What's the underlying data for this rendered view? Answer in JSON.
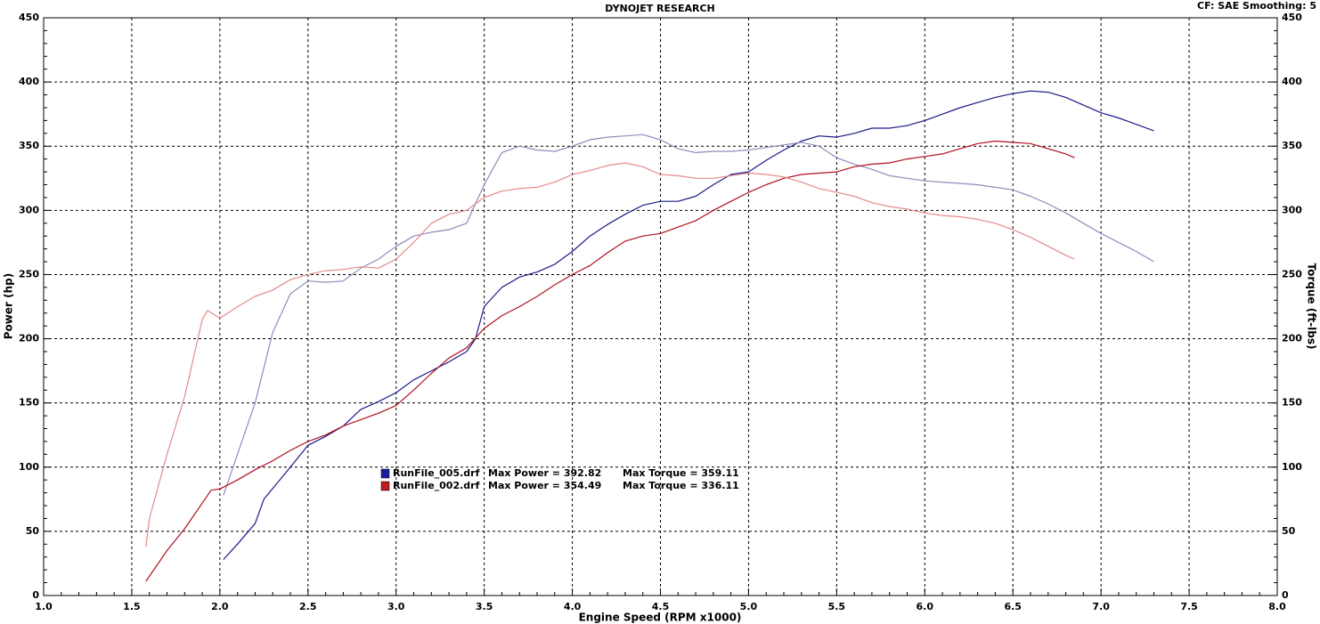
{
  "chart_data": {
    "type": "line",
    "title": "DYNOJET RESEARCH",
    "subtitle": "CF: SAE  Smoothing: 5",
    "xlabel": "Engine Speed (RPM x1000)",
    "ylabel": "Power (hp)",
    "y2label": "Torque (ft-lbs)",
    "xlim": [
      1,
      8
    ],
    "xticks": [
      {
        "value": 1,
        "label": "1.0"
      },
      {
        "value": 1.5,
        "label": "1.5"
      },
      {
        "value": 2,
        "label": "2.0"
      },
      {
        "value": 2.5,
        "label": "2.5"
      },
      {
        "value": 3,
        "label": "3.0"
      },
      {
        "value": 3.5,
        "label": "3.5"
      },
      {
        "value": 4,
        "label": "4.0"
      },
      {
        "value": 4.5,
        "label": "4.5"
      },
      {
        "value": 5,
        "label": "5.0"
      },
      {
        "value": 5.5,
        "label": "5.5"
      },
      {
        "value": 6,
        "label": "6.0"
      },
      {
        "value": 6.5,
        "label": "6.5"
      },
      {
        "value": 7,
        "label": "7.0"
      },
      {
        "value": 7.5,
        "label": "7.5"
      },
      {
        "value": 8,
        "label": "8.0"
      }
    ],
    "ylim": [
      0,
      450
    ],
    "yticks": [
      0,
      50,
      100,
      150,
      200,
      250,
      300,
      350,
      400,
      450
    ],
    "y2lim": [
      0,
      450
    ],
    "y2ticks": [
      0,
      50,
      100,
      150,
      200,
      250,
      300,
      350,
      400,
      450
    ],
    "grid": true,
    "minor_ticks_per_major": 5,
    "legend": [
      {
        "name": "RunFile_005.drf",
        "max_power": "Max Power = 392.82",
        "max_torque": "Max Torque = 359.11",
        "color": "#1c1ca0"
      },
      {
        "name": "RunFile_002.drf",
        "max_power": "Max Power = 354.49",
        "max_torque": "Max Torque = 336.11",
        "color": "#c01a1a"
      }
    ],
    "series": [
      {
        "color": "#1a1a8a",
        "x": [
          2.02,
          2.1,
          2.2,
          2.25,
          2.4,
          2.5,
          2.6,
          2.7,
          2.8,
          2.9,
          3.0,
          3.1,
          3.2,
          3.3,
          3.4,
          3.45,
          3.5,
          3.6,
          3.7,
          3.8,
          3.9,
          4.0,
          4.1,
          4.2,
          4.3,
          4.4,
          4.5,
          4.6,
          4.7,
          4.8,
          4.9,
          5.0,
          5.1,
          5.2,
          5.3,
          5.4,
          5.5,
          5.6,
          5.7,
          5.8,
          5.9,
          6.0,
          6.1,
          6.2,
          6.3,
          6.4,
          6.5,
          6.6,
          6.7,
          6.8,
          6.9,
          7.0,
          7.1,
          7.2,
          7.3
        ],
        "values": [
          28,
          40,
          56,
          75,
          100,
          117,
          124,
          132,
          145,
          151,
          158,
          168,
          175,
          182,
          190,
          200,
          225,
          240,
          248,
          252,
          258,
          268,
          280,
          289,
          297,
          304,
          307,
          307,
          311,
          320,
          328,
          330,
          339,
          347,
          354,
          358,
          357,
          360,
          364,
          364,
          366,
          370,
          375,
          380,
          384,
          388,
          391,
          393,
          392,
          388,
          382,
          376,
          372,
          367,
          362
        ]
      },
      {
        "color": "#8c8cbc",
        "axis": "y2",
        "x": [
          2.02,
          2.1,
          2.2,
          2.3,
          2.4,
          2.5,
          2.6,
          2.7,
          2.8,
          2.9,
          3.0,
          3.1,
          3.2,
          3.3,
          3.4,
          3.5,
          3.6,
          3.7,
          3.8,
          3.9,
          4.0,
          4.1,
          4.2,
          4.3,
          4.4,
          4.5,
          4.6,
          4.7,
          4.8,
          4.9,
          5.0,
          5.1,
          5.2,
          5.3,
          5.4,
          5.5,
          5.6,
          5.7,
          5.8,
          5.9,
          6.0,
          6.1,
          6.2,
          6.3,
          6.4,
          6.5,
          6.6,
          6.7,
          6.8,
          6.9,
          7.0,
          7.1,
          7.2,
          7.3
        ],
        "values": [
          78,
          110,
          150,
          205,
          235,
          245,
          244,
          245,
          255,
          262,
          272,
          280,
          283,
          285,
          290,
          320,
          345,
          350,
          347,
          346,
          350,
          355,
          357,
          358,
          359,
          355,
          348,
          345,
          346,
          346,
          347,
          349,
          351,
          353,
          350,
          341,
          336,
          332,
          327,
          325,
          323,
          322,
          321,
          320,
          318,
          316,
          311,
          305,
          298,
          290,
          282,
          275,
          268,
          260
        ]
      },
      {
        "color": "#b0101e",
        "x": [
          1.58,
          1.6,
          1.7,
          1.8,
          1.9,
          1.95,
          2.0,
          2.1,
          2.2,
          2.3,
          2.4,
          2.5,
          2.6,
          2.7,
          2.8,
          2.9,
          3.0,
          3.1,
          3.2,
          3.3,
          3.4,
          3.5,
          3.6,
          3.7,
          3.8,
          3.9,
          4.0,
          4.1,
          4.2,
          4.3,
          4.4,
          4.5,
          4.6,
          4.7,
          4.8,
          4.9,
          5.0,
          5.1,
          5.2,
          5.3,
          5.4,
          5.5,
          5.6,
          5.7,
          5.8,
          5.9,
          6.0,
          6.1,
          6.2,
          6.3,
          6.4,
          6.5,
          6.6,
          6.7,
          6.8,
          6.85
        ],
        "values": [
          11,
          15,
          35,
          52,
          72,
          82,
          83,
          90,
          98,
          105,
          113,
          120,
          125,
          132,
          137,
          142,
          148,
          160,
          173,
          185,
          193,
          208,
          218,
          225,
          233,
          242,
          250,
          257,
          267,
          276,
          280,
          282,
          287,
          292,
          300,
          307,
          314,
          320,
          325,
          328,
          329,
          330,
          334,
          336,
          337,
          340,
          342,
          344,
          348,
          352,
          354,
          353,
          352,
          348,
          344,
          341
        ]
      },
      {
        "color": "#e48a8a",
        "axis": "y2",
        "x": [
          1.58,
          1.6,
          1.7,
          1.8,
          1.9,
          1.93,
          2.0,
          2.1,
          2.2,
          2.3,
          2.4,
          2.5,
          2.6,
          2.7,
          2.8,
          2.9,
          3.0,
          3.1,
          3.2,
          3.3,
          3.4,
          3.5,
          3.6,
          3.7,
          3.8,
          3.9,
          4.0,
          4.1,
          4.2,
          4.3,
          4.4,
          4.5,
          4.6,
          4.7,
          4.8,
          4.9,
          5.0,
          5.1,
          5.2,
          5.3,
          5.4,
          5.5,
          5.6,
          5.7,
          5.8,
          5.9,
          6.0,
          6.1,
          6.2,
          6.3,
          6.4,
          6.5,
          6.6,
          6.7,
          6.8,
          6.85
        ],
        "values": [
          38,
          60,
          110,
          155,
          215,
          222,
          216,
          225,
          233,
          238,
          246,
          250,
          253,
          254,
          256,
          255,
          262,
          275,
          290,
          297,
          300,
          310,
          315,
          317,
          318,
          322,
          328,
          331,
          335,
          337,
          334,
          328,
          327,
          325,
          325,
          327,
          329,
          328,
          326,
          322,
          317,
          314,
          311,
          306,
          303,
          301,
          298,
          296,
          295,
          293,
          290,
          285,
          279,
          272,
          265,
          262
        ]
      }
    ]
  }
}
